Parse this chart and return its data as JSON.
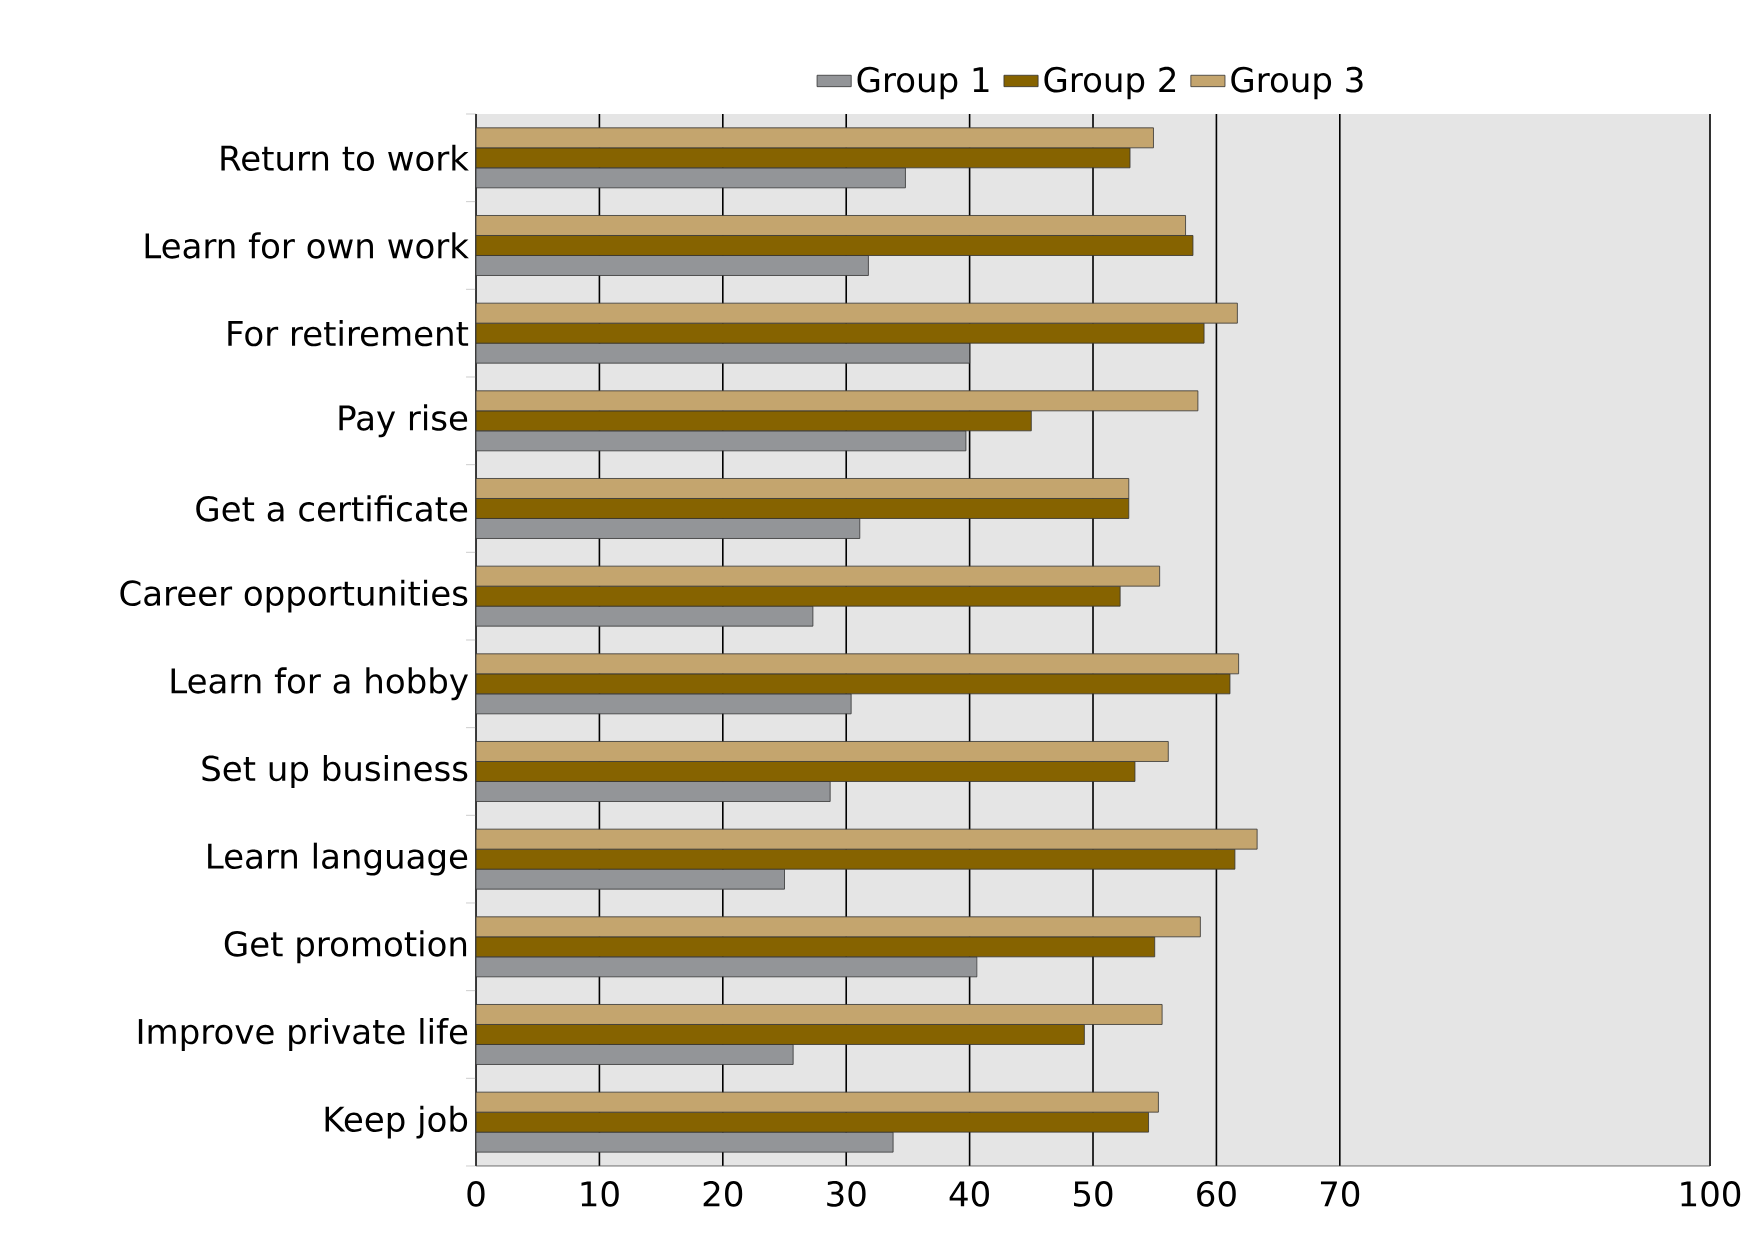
{
  "chart_data": {
    "type": "bar",
    "orientation": "horizontal",
    "categories": [
      "Return to work",
      "Learn for own work",
      "For retirement",
      "Pay rise",
      "Get a certificate",
      "Career opportunities",
      "Learn for a hobby",
      "Set up business",
      "Learn language",
      "Get promotion",
      "Improve private life",
      "Keep job"
    ],
    "series": [
      {
        "name": "Group 1",
        "color": "#939598",
        "values": [
          34.8,
          31.8,
          40.0,
          39.7,
          31.1,
          27.3,
          30.4,
          28.7,
          25.0,
          40.6,
          25.7,
          33.8
        ]
      },
      {
        "name": "Group 2",
        "color": "#866300",
        "values": [
          53.0,
          58.1,
          59.0,
          45.0,
          52.9,
          52.2,
          61.1,
          53.4,
          61.5,
          55.0,
          49.3,
          54.5
        ]
      },
      {
        "name": "Group 3",
        "color": "#c4a56e",
        "values": [
          54.9,
          57.5,
          61.7,
          58.5,
          52.9,
          55.4,
          61.8,
          56.1,
          63.3,
          58.7,
          55.6,
          55.3
        ]
      }
    ],
    "xlim": [
      0,
      100
    ],
    "xticks": [
      0,
      10,
      20,
      30,
      40,
      50,
      60,
      70,
      100
    ],
    "grid": "x",
    "legend": "top"
  }
}
